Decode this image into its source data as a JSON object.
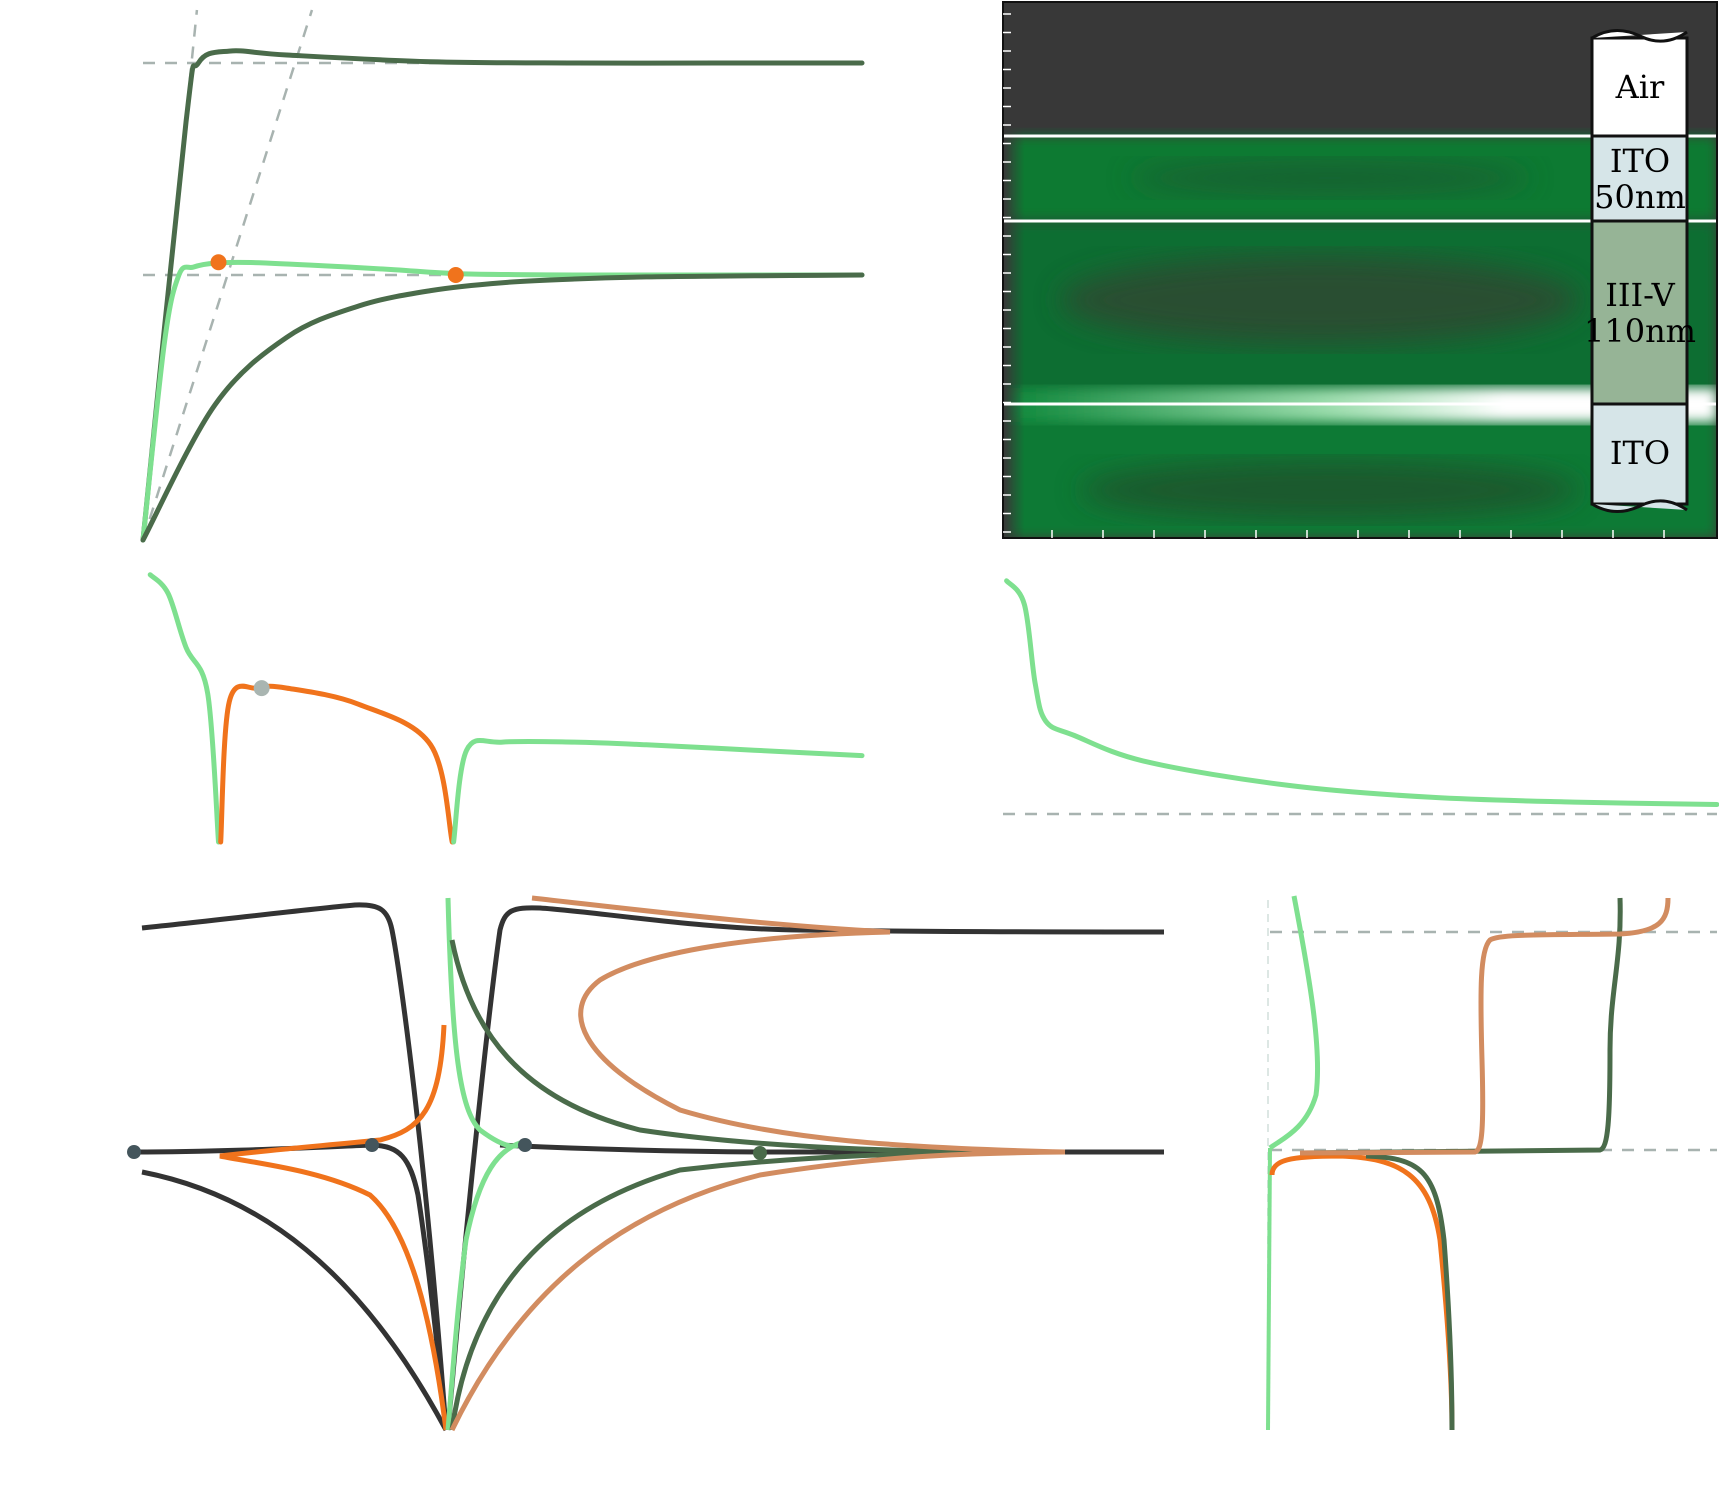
{
  "colors": {
    "dark_green": "#4a6b4a",
    "light_green": "#7ee08f",
    "orange": "#f0731c",
    "tan": "#d28c60",
    "black": "#333333",
    "guide_gray": "#a8b3b0",
    "marker_gray": "#a9b5b1",
    "marker_slate": "#44555c",
    "field_dark": "#383838",
    "field_green": "#0b8a3a",
    "layer_ito": "#d6e5e8",
    "layer_iiiv": "#96b496",
    "layer_air": "#ffffff"
  },
  "chart_data": [
    {
      "id": "top-left",
      "type": "line",
      "title": "",
      "xlabel": "",
      "ylabel": "",
      "xlim": [
        0,
        10
      ],
      "ylim": [
        0,
        2.0
      ],
      "grid": false,
      "series": [
        {
          "color_key": "dark_green",
          "x": [
            0,
            0.6,
            0.77,
            1.2,
            2.0,
            4.0,
            6.0,
            8.0,
            10.0
          ],
          "y": [
            0.0,
            1.58,
            1.8,
            1.845,
            1.83,
            1.805,
            1.8,
            1.8,
            1.8
          ]
        },
        {
          "color_key": "light_green",
          "x": [
            0,
            0.3,
            0.5,
            0.7,
            1.0,
            1.5,
            2.5,
            3.5,
            4.4,
            6.0,
            8.0,
            10.0
          ],
          "y": [
            0.0,
            0.75,
            1.0,
            1.03,
            1.045,
            1.047,
            1.035,
            1.02,
            1.005,
            1.0,
            1.0,
            1.0
          ]
        },
        {
          "color_key": "dark_green",
          "x": [
            0,
            1,
            2,
            3,
            4,
            5,
            6,
            7,
            8,
            9,
            10
          ],
          "y": [
            0.0,
            0.51,
            0.765,
            0.883,
            0.941,
            0.971,
            0.985,
            0.993,
            0.996,
            0.998,
            1.0
          ]
        }
      ],
      "guides": {
        "y": [
          1.0,
          1.8
        ],
        "lines": [
          {
            "x": [
              0,
              2.35
            ],
            "y": [
              0,
              2.0
            ]
          },
          {
            "x": [
              0,
              0.75
            ],
            "y": [
              0,
              2.0
            ]
          }
        ]
      },
      "markers": [
        {
          "color_key": "orange",
          "x": 1.05,
          "y": 1.048
        },
        {
          "color_key": "orange",
          "x": 4.35,
          "y": 1.0
        }
      ]
    },
    {
      "id": "top-right",
      "type": "heatmap",
      "title": "",
      "xlabel": "",
      "ylabel": "",
      "layers": [
        {
          "label": "Air",
          "color_key": "layer_air"
        },
        {
          "label": "ITO\n50nm",
          "color_key": "layer_ito"
        },
        {
          "label": "III-V\n110nm",
          "color_key": "layer_iiiv"
        },
        {
          "label": "ITO",
          "color_key": "layer_ito"
        }
      ],
      "interfaces": [
        "Air/ITO",
        "ITO/III-V",
        "III-V/ITO"
      ]
    },
    {
      "id": "middle-left",
      "type": "line",
      "title": "",
      "xlabel": "",
      "ylabel": "",
      "xlim": [
        0,
        10
      ],
      "ylim": [
        0,
        1.0
      ],
      "grid": false,
      "series": [
        {
          "color_key": "light_green",
          "x": [
            0.1,
            0.35,
            0.6,
            0.9,
            1.05
          ],
          "y": [
            0.99,
            0.92,
            0.72,
            0.55,
            0.0
          ]
        },
        {
          "color_key": "orange",
          "x": [
            1.08,
            1.2,
            1.6,
            2.0,
            3.0,
            4.0,
            4.3
          ],
          "y": [
            0.0,
            0.52,
            0.57,
            0.57,
            0.51,
            0.36,
            0.0
          ]
        },
        {
          "color_key": "light_green",
          "x": [
            4.32,
            4.5,
            5.0,
            6.0,
            7.0,
            8.5,
            10.0
          ],
          "y": [
            0.0,
            0.34,
            0.37,
            0.37,
            0.36,
            0.34,
            0.32
          ]
        }
      ],
      "markers": [
        {
          "color_key": "marker_gray",
          "x": 1.65,
          "y": 0.57
        }
      ]
    },
    {
      "id": "middle-right",
      "type": "line",
      "title": "",
      "xlabel": "",
      "ylabel": "",
      "xlim": [
        0,
        10
      ],
      "ylim": [
        0,
        1.0
      ],
      "grid": false,
      "series": [
        {
          "color_key": "light_green",
          "x": [
            0.05,
            0.3,
            0.45,
            0.6,
            1.0,
            2.0,
            4.0,
            6.0,
            8.0,
            10.0
          ],
          "y": [
            0.98,
            0.88,
            0.55,
            0.39,
            0.33,
            0.22,
            0.12,
            0.07,
            0.05,
            0.04
          ]
        }
      ],
      "guides": {
        "y": [
          0.0
        ]
      }
    },
    {
      "id": "bottom-left",
      "type": "line",
      "title": "",
      "xlabel": "",
      "ylabel": "",
      "grid": false,
      "series": [
        {
          "color_key": "black"
        },
        {
          "color_key": "orange"
        },
        {
          "color_key": "light_green"
        },
        {
          "color_key": "dark_green"
        },
        {
          "color_key": "tan"
        }
      ],
      "markers": [
        {
          "color_key": "marker_slate"
        },
        {
          "color_key": "marker_slate"
        },
        {
          "color_key": "marker_slate"
        },
        {
          "color_key": "dark_green"
        }
      ]
    },
    {
      "id": "bottom-right",
      "type": "line",
      "title": "",
      "xlabel": "",
      "ylabel": "",
      "grid": false,
      "series": [
        {
          "color_key": "light_green"
        },
        {
          "color_key": "orange"
        },
        {
          "color_key": "dark_green"
        },
        {
          "color_key": "tan"
        }
      ]
    }
  ]
}
